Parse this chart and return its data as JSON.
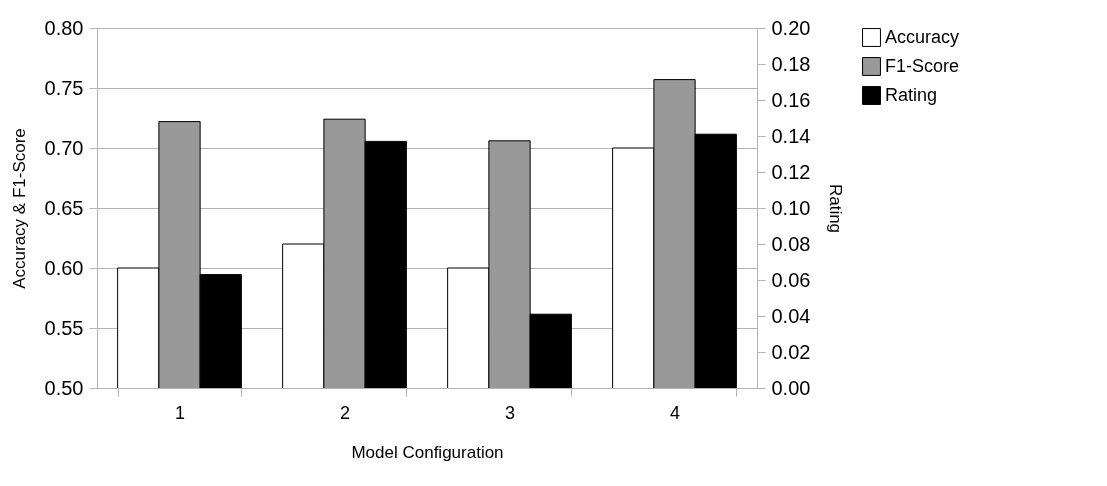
{
  "chart_data": {
    "type": "bar",
    "xlabel": "Model Configuration",
    "ylabel": "Accuracy & F1-Score",
    "y2label": "Rating",
    "categories": [
      "1",
      "2",
      "3",
      "4"
    ],
    "series": [
      {
        "name": "Accuracy",
        "color": "#ffffff",
        "values": [
          0.6,
          0.62,
          0.6,
          0.7
        ]
      },
      {
        "name": "F1-Score",
        "color": "#999999",
        "values": [
          0.722,
          0.724,
          0.706,
          0.757
        ]
      },
      {
        "name": "Rating",
        "color": "#000000",
        "values": [
          0.063,
          0.137,
          0.041,
          0.141
        ],
        "axis": "y2"
      }
    ],
    "ylim": [
      0.5,
      0.8
    ],
    "yticks": [
      {
        "value": 0.5,
        "label": "0.50"
      },
      {
        "value": 0.55,
        "label": "0.55"
      },
      {
        "value": 0.6,
        "label": "0.60"
      },
      {
        "value": 0.65,
        "label": "0.65"
      },
      {
        "value": 0.7,
        "label": "0.70"
      },
      {
        "value": 0.75,
        "label": "0.75"
      },
      {
        "value": 0.8,
        "label": "0.80"
      }
    ],
    "y2lim": [
      0,
      0.2
    ],
    "y2ticks": [
      {
        "value": 0,
        "label": "0.00"
      },
      {
        "value": 0.02,
        "label": "0.02"
      },
      {
        "value": 0.04,
        "label": "0.04"
      },
      {
        "value": 0.06,
        "label": "0.06"
      },
      {
        "value": 0.08,
        "label": "0.08"
      },
      {
        "value": 0.1,
        "label": "0.10"
      },
      {
        "value": 0.12,
        "label": "0.12"
      },
      {
        "value": 0.14,
        "label": "0.14"
      },
      {
        "value": 0.16,
        "label": "0.16"
      },
      {
        "value": 0.18,
        "label": "0.18"
      },
      {
        "value": 0.2,
        "label": "0.20"
      }
    ],
    "grid": "y",
    "legend": "right"
  }
}
